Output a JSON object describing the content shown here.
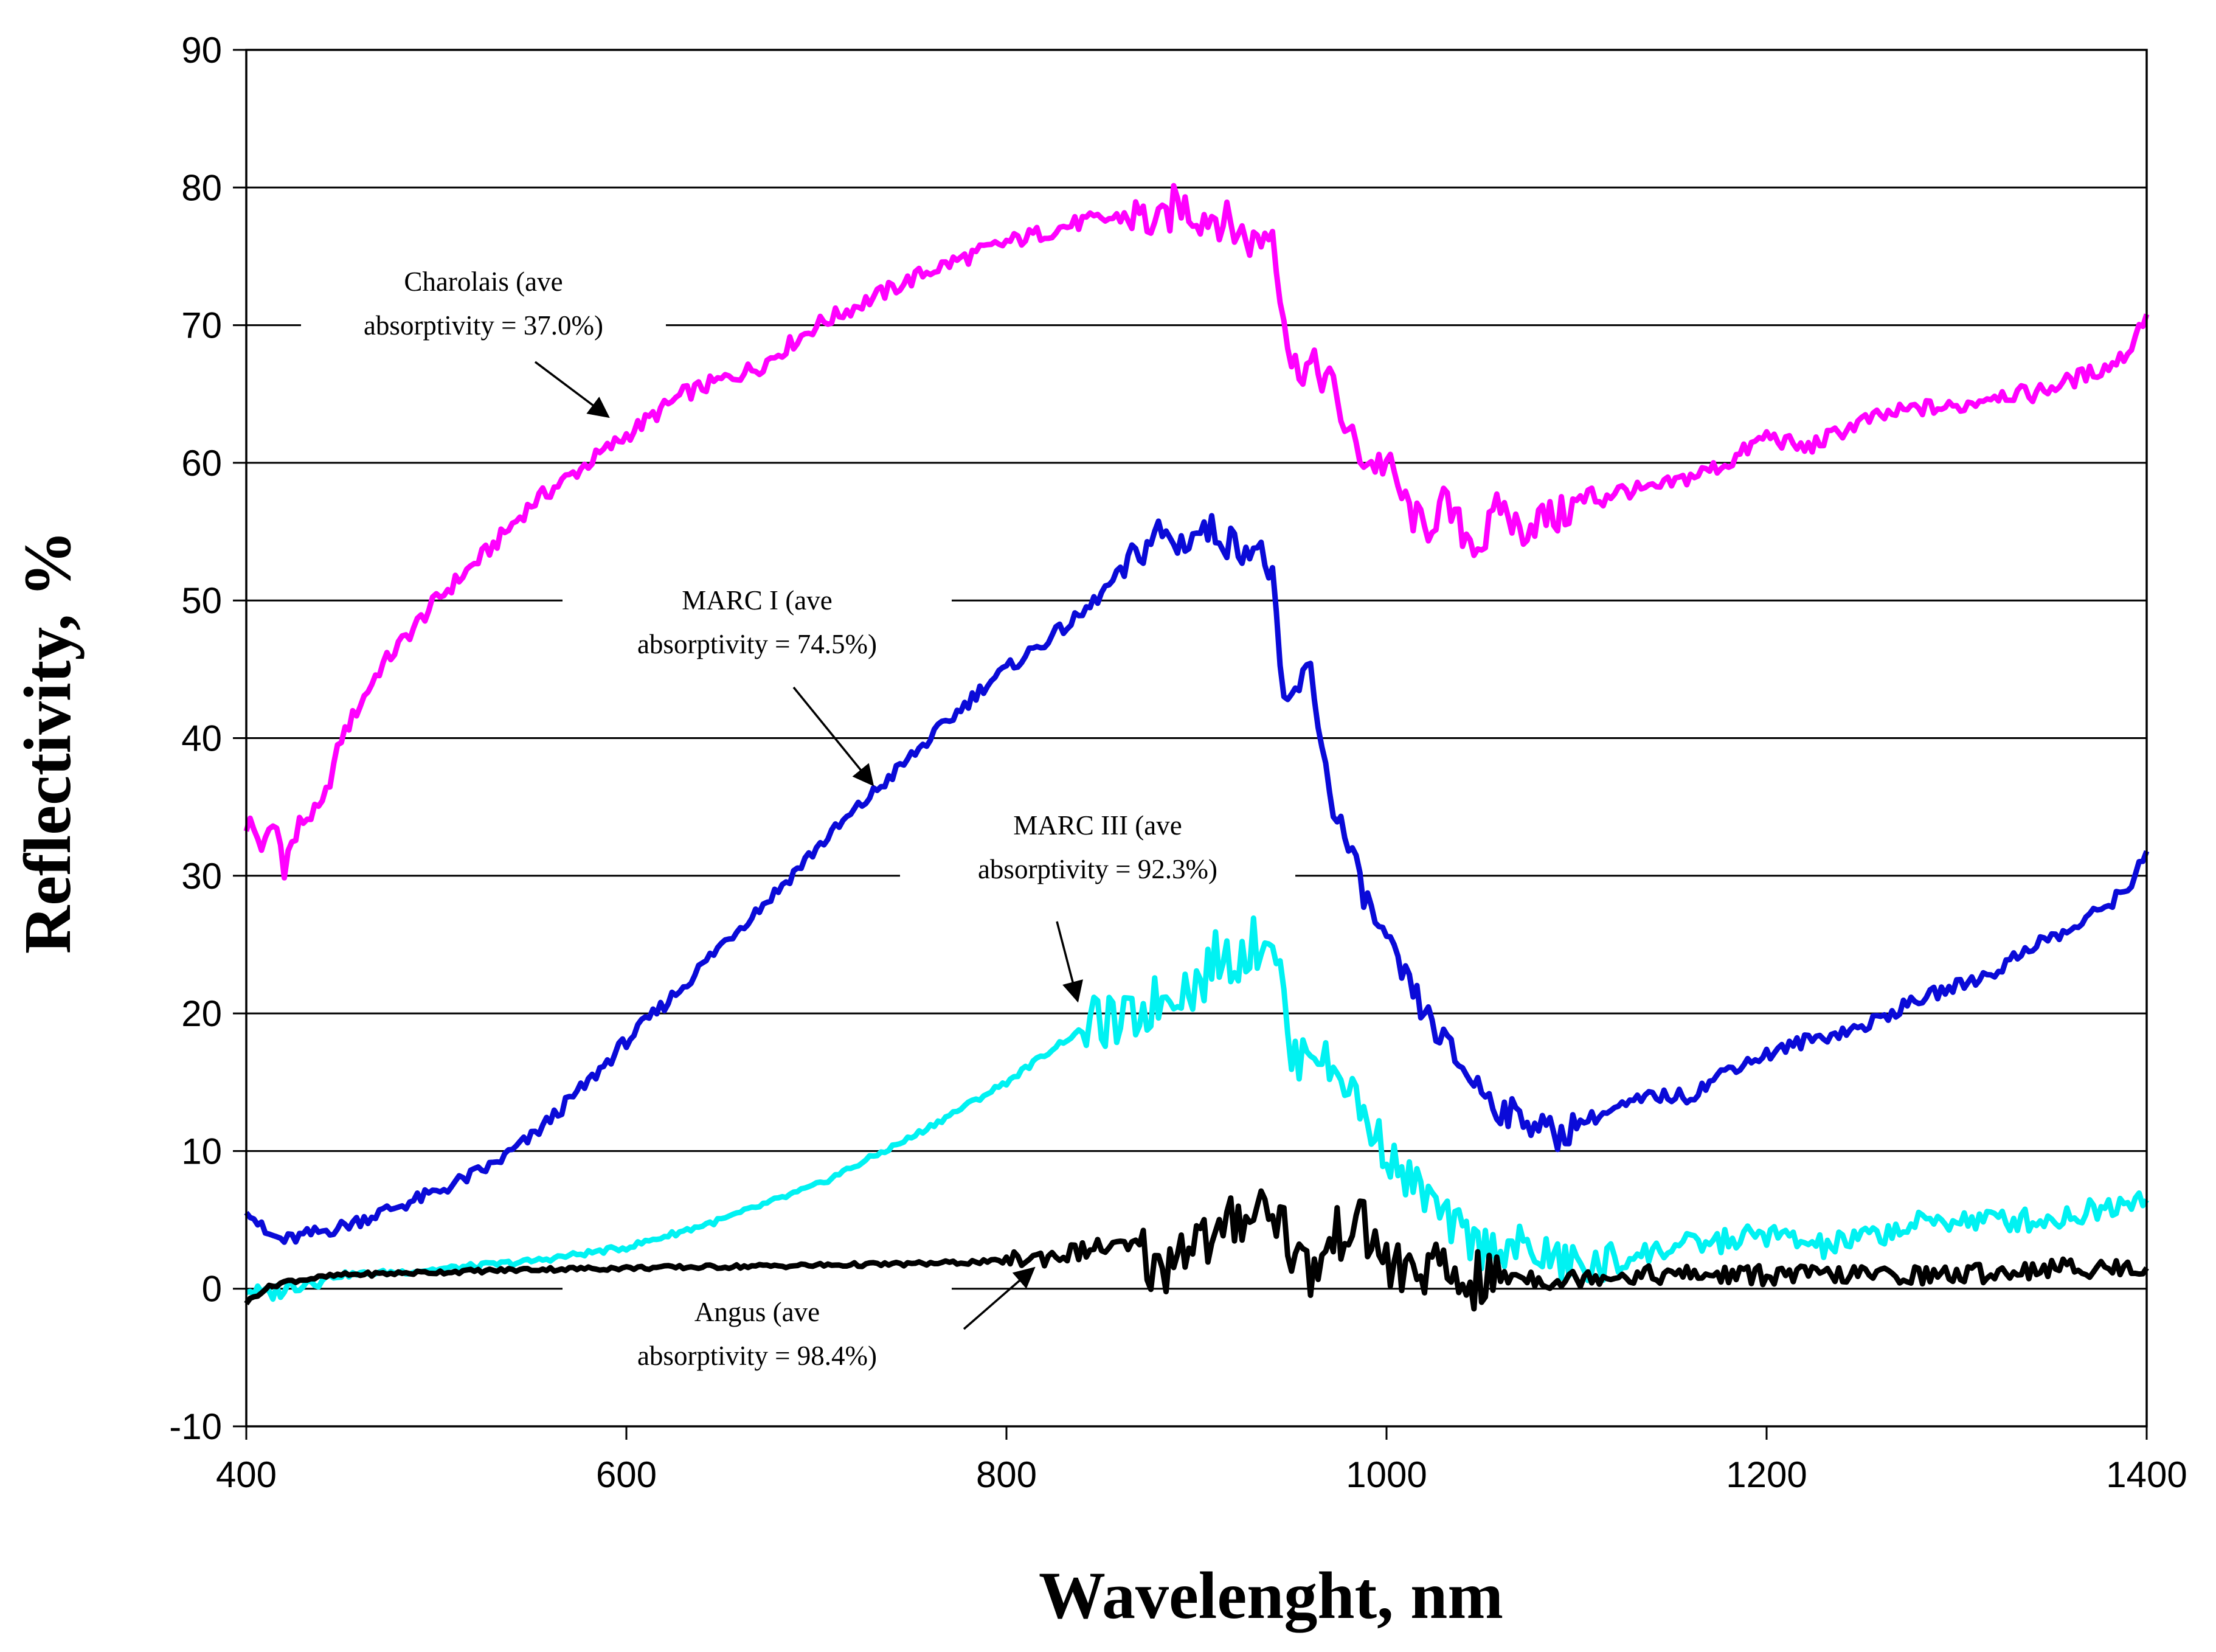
{
  "chart_data": {
    "type": "line",
    "title": "",
    "xlabel": "Wavelenght, nm",
    "ylabel": "Reflectivity, %",
    "xlim": [
      400,
      1400
    ],
    "ylim": [
      -10,
      90
    ],
    "xticks": [
      400,
      600,
      800,
      1000,
      1200,
      1400
    ],
    "yticks": [
      -10,
      0,
      10,
      20,
      30,
      40,
      50,
      60,
      70,
      80,
      90
    ],
    "grid": "horizontal",
    "series": [
      {
        "name": "Charolais",
        "color": "#ff00ff",
        "x": [
          400,
          410,
          415,
          420,
          430,
          440,
          450,
          470,
          500,
          530,
          550,
          570,
          600,
          630,
          650,
          670,
          680,
          700,
          730,
          760,
          800,
          840,
          870,
          880,
          890,
          900,
          910,
          920,
          930,
          940,
          945,
          950,
          960,
          970,
          980,
          990,
          1000,
          1010,
          1020,
          1030,
          1040,
          1050,
          1060,
          1070,
          1080,
          1090,
          1100,
          1120,
          1140,
          1160,
          1180,
          1200,
          1220,
          1250,
          1280,
          1300,
          1320,
          1340,
          1360,
          1380,
          1390,
          1400
        ],
        "y": [
          34,
          32,
          34,
          31,
          34,
          35,
          40,
          45,
          50,
          54,
          57,
          59,
          62,
          65,
          66,
          67,
          68,
          70,
          72,
          74,
          76,
          77.5,
          78,
          77,
          79,
          78,
          78,
          77,
          76,
          77,
          72,
          67,
          67,
          66,
          62,
          60,
          60,
          57,
          55,
          57,
          55,
          54,
          57,
          55,
          56,
          56,
          57,
          58,
          58,
          59,
          60,
          62,
          61,
          63,
          64,
          64,
          65,
          65,
          66,
          67,
          68,
          71
        ]
      },
      {
        "name": "MARC I",
        "color": "#0a0ad8",
        "x": [
          400,
          410,
          420,
          450,
          480,
          500,
          530,
          550,
          580,
          600,
          630,
          650,
          680,
          700,
          730,
          760,
          790,
          810,
          840,
          860,
          880,
          890,
          900,
          910,
          920,
          930,
          940,
          945,
          950,
          960,
          970,
          980,
          990,
          1000,
          1020,
          1040,
          1060,
          1080,
          1090,
          1100,
          1120,
          1140,
          1160,
          1180,
          1200,
          1220,
          1250,
          1280,
          1300,
          1320,
          1340,
          1360,
          1380,
          1390,
          1400
        ],
        "y": [
          6,
          4,
          3.5,
          4.5,
          6,
          7,
          9,
          11,
          15,
          18,
          22,
          25,
          29,
          32,
          36,
          40,
          44,
          46,
          49,
          52,
          55,
          54,
          55,
          55,
          54,
          54,
          52,
          42,
          43,
          45,
          36,
          32,
          28,
          25,
          20,
          16,
          13,
          12,
          11,
          12,
          13,
          14,
          14,
          16,
          17,
          18,
          19,
          21,
          22,
          23,
          25,
          26,
          28,
          29,
          32
        ]
      },
      {
        "name": "MARC III",
        "color": "#00f2f2",
        "x": [
          400,
          410,
          420,
          430,
          450,
          480,
          500,
          550,
          600,
          650,
          700,
          750,
          800,
          830,
          850,
          860,
          870,
          880,
          890,
          900,
          910,
          920,
          930,
          940,
          945,
          950,
          960,
          970,
          980,
          990,
          1000,
          1010,
          1020,
          1030,
          1040,
          1050,
          1070,
          1090,
          1110,
          1120,
          1150,
          1180,
          1200,
          1230,
          1260,
          1290,
          1320,
          1350,
          1380,
          1400
        ],
        "y": [
          0,
          -0.5,
          0,
          0.5,
          1,
          1.2,
          1.4,
          2,
          3,
          5,
          7.5,
          11,
          15,
          18,
          19.5,
          19,
          20,
          21,
          22,
          22,
          24,
          24,
          25,
          26,
          22,
          16,
          18,
          16,
          15,
          12,
          10,
          8,
          7,
          5,
          4,
          3,
          3,
          2,
          1.5,
          2,
          3,
          3.5,
          4,
          3,
          4,
          5,
          5,
          5,
          6,
          7
        ]
      },
      {
        "name": "Angus",
        "color": "#000000",
        "x": [
          400,
          410,
          420,
          450,
          500,
          550,
          600,
          650,
          700,
          750,
          800,
          830,
          850,
          870,
          880,
          890,
          900,
          910,
          920,
          930,
          940,
          945,
          950,
          960,
          970,
          980,
          990,
          1000,
          1010,
          1020,
          1030,
          1040,
          1050,
          1070,
          1090,
          1110,
          1150,
          1200,
          1250,
          1300,
          1350,
          1400
        ],
        "y": [
          -1,
          0,
          0.5,
          1,
          1.2,
          1.4,
          1.5,
          1.6,
          1.7,
          1.8,
          2,
          2.5,
          3,
          3,
          1,
          3,
          4,
          3,
          5,
          6,
          6,
          5,
          3,
          1,
          3,
          5,
          4,
          2,
          1,
          1.5,
          1,
          0.5,
          0.5,
          1,
          0.5,
          1,
          1,
          1,
          1,
          1,
          1.5,
          1.5
        ]
      }
    ],
    "annotations": [
      {
        "lines": [
          "Charolais (ave",
          "absorptivity = 37.0%)"
        ],
        "series": "Charolais"
      },
      {
        "lines": [
          "MARC I (ave",
          "absorptivity = 74.5%)"
        ],
        "series": "MARC I"
      },
      {
        "lines": [
          "MARC III (ave",
          "absorptivity = 92.3%)"
        ],
        "series": "MARC III"
      },
      {
        "lines": [
          "Angus (ave",
          "absorptivity = 98.4%)"
        ],
        "series": "Angus"
      }
    ]
  }
}
